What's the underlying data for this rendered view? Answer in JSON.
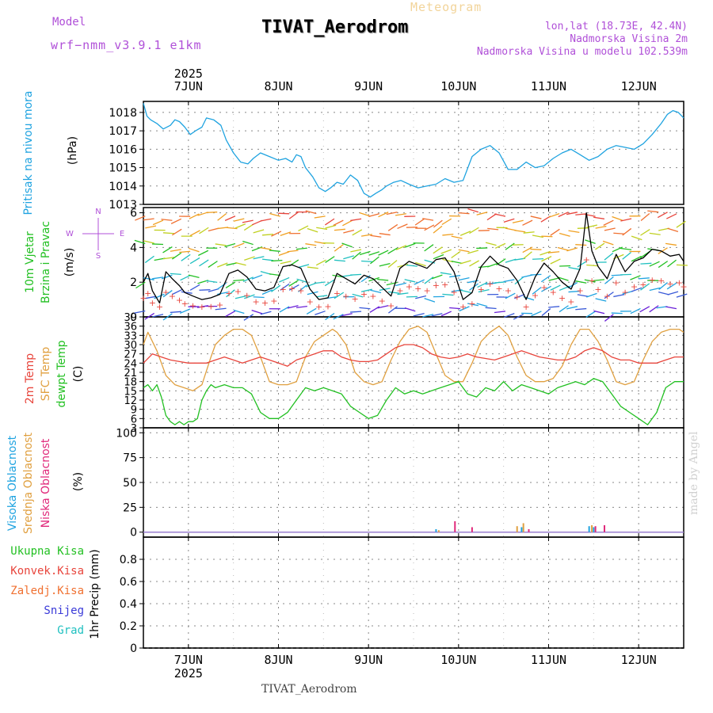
{
  "header": {
    "model_label": "Model",
    "model_name": "wrf−nmm_v3.9.1 e1km",
    "chart_title": "Meteogram",
    "station": "TIVAT_Aerodrom",
    "lonlat": "lon,lat (18.73E, 42.4N)",
    "elevation": "Nadmorska Visina 2m",
    "model_elevation": "Nadmorska Visina u modelu 102.539m"
  },
  "footer": {
    "station": "TIVAT_Aerodrom",
    "credit": "made by Angel"
  },
  "colors": {
    "pressure": "#1fa3e0",
    "temp2m": "#e8453c",
    "sfc_temp": "#e0a040",
    "dewpoint": "#22c022",
    "high_cloud": "#1fa3e0",
    "mid_cloud": "#e0a040",
    "low_cloud": "#e0287a",
    "wind_label": "#22c022",
    "total_precip": "#22c022",
    "conv_precip": "#e8453c",
    "frozen_precip": "#f07030",
    "snow": "#3a3ad8",
    "graupel": "#20c0c0",
    "purple_text": "#b050d8"
  },
  "chart_data": [
    {
      "type": "line",
      "panel": "pressure",
      "top_year": "2025",
      "top_ticks": [
        "7JUN",
        "8JUN",
        "9JUN",
        "10JUN",
        "11JUN",
        "12JUN"
      ],
      "bottom_ticks": [
        "7JUN",
        "8JUN",
        "9JUN",
        "10JUN",
        "11JUN",
        "12JUN"
      ],
      "bottom_year": "2025",
      "xlim_days": [
        6.5,
        12.5
      ],
      "ylabel": "(hPa)",
      "side_label": "Pritisak na nivou mora",
      "ylim": [
        1013,
        1018.6
      ],
      "yticks": [
        1013,
        1014,
        1015,
        1016,
        1017,
        1018
      ],
      "series": [
        {
          "x": [
            6.5,
            6.54,
            6.58,
            6.65,
            6.72,
            6.8,
            6.85,
            6.9,
            6.96,
            7.02,
            7.08,
            7.15,
            7.2,
            7.28,
            7.36,
            7.42,
            7.5,
            7.58,
            7.66,
            7.72,
            7.8,
            7.9,
            8.0,
            8.08,
            8.15,
            8.2,
            8.25,
            8.3,
            8.38,
            8.45,
            8.52,
            8.58,
            8.65,
            8.72,
            8.8,
            8.88,
            8.95,
            9.02,
            9.08,
            9.15,
            9.2,
            9.28,
            9.36,
            9.45,
            9.55,
            9.65,
            9.75,
            9.85,
            9.95,
            10.05,
            10.15,
            10.25,
            10.35,
            10.45,
            10.55,
            10.65,
            10.75,
            10.85,
            10.95,
            11.05,
            11.15,
            11.25,
            11.35,
            11.45,
            11.55,
            11.65,
            11.75,
            11.85,
            11.95,
            12.05,
            12.15,
            12.25,
            12.32,
            12.38,
            12.44,
            12.5
          ],
          "values": [
            1018.5,
            1017.8,
            1017.6,
            1017.4,
            1017.1,
            1017.3,
            1017.6,
            1017.5,
            1017.2,
            1016.8,
            1017.0,
            1017.2,
            1017.7,
            1017.6,
            1017.3,
            1016.5,
            1015.8,
            1015.3,
            1015.2,
            1015.5,
            1015.8,
            1015.6,
            1015.4,
            1015.5,
            1015.3,
            1015.7,
            1015.6,
            1015.0,
            1014.5,
            1013.9,
            1013.7,
            1013.9,
            1014.2,
            1014.1,
            1014.6,
            1014.3,
            1013.6,
            1013.4,
            1013.6,
            1013.8,
            1014.0,
            1014.2,
            1014.3,
            1014.1,
            1013.9,
            1014.0,
            1014.1,
            1014.4,
            1014.2,
            1014.3,
            1015.6,
            1016.0,
            1016.2,
            1015.8,
            1014.9,
            1014.9,
            1015.3,
            1015.0,
            1015.1,
            1015.5,
            1015.8,
            1016.0,
            1015.7,
            1015.4,
            1015.6,
            1016.0,
            1016.2,
            1016.1,
            1016.0,
            1016.3,
            1016.8,
            1017.4,
            1017.9,
            1018.1,
            1018.0,
            1017.7
          ],
          "color": "#1fa3e0"
        }
      ]
    },
    {
      "type": "line",
      "panel": "wind",
      "ylabel": "(m/s)",
      "side_labels": [
        "10m Vjetar",
        "Brzina i Pravac"
      ],
      "compass": {
        "n": "N",
        "s": "S",
        "w": "W",
        "e": "E"
      },
      "ylim": [
        0,
        6.3
      ],
      "yticks": [
        0,
        2,
        4,
        6
      ],
      "note": "speed line (black) with scattered wind-direction arrows colored by speed",
      "series": [
        {
          "name": "speed",
          "x": [
            6.5,
            6.55,
            6.6,
            6.68,
            6.75,
            6.82,
            6.9,
            6.96,
            7.05,
            7.15,
            7.25,
            7.35,
            7.45,
            7.55,
            7.65,
            7.75,
            7.85,
            7.95,
            8.05,
            8.15,
            8.25,
            8.35,
            8.45,
            8.55,
            8.65,
            8.75,
            8.85,
            8.95,
            9.05,
            9.15,
            9.25,
            9.35,
            9.45,
            9.55,
            9.65,
            9.75,
            9.85,
            9.95,
            10.05,
            10.15,
            10.25,
            10.35,
            10.45,
            10.55,
            10.65,
            10.75,
            10.85,
            10.95,
            11.05,
            11.15,
            11.25,
            11.35,
            11.42,
            11.48,
            11.55,
            11.65,
            11.75,
            11.85,
            11.95,
            12.05,
            12.15,
            12.25,
            12.35,
            12.45,
            12.5
          ],
          "values": [
            2.0,
            2.5,
            1.5,
            0.8,
            2.6,
            2.2,
            1.8,
            1.4,
            1.2,
            1.0,
            1.1,
            1.3,
            2.5,
            2.7,
            2.3,
            1.6,
            1.5,
            1.7,
            2.9,
            3.0,
            2.8,
            1.6,
            1.0,
            1.1,
            2.5,
            2.2,
            1.9,
            2.4,
            2.2,
            1.7,
            1.2,
            2.8,
            3.2,
            3.0,
            2.8,
            3.3,
            3.4,
            2.6,
            1.0,
            1.4,
            2.9,
            3.5,
            3.0,
            2.8,
            2.1,
            1.0,
            2.3,
            3.1,
            2.6,
            2.0,
            1.6,
            2.8,
            6.0,
            3.8,
            2.9,
            2.2,
            3.6,
            2.6,
            3.2,
            3.4,
            3.9,
            3.8,
            3.5,
            3.6,
            3.2
          ],
          "color": "#000000"
        }
      ]
    },
    {
      "type": "line",
      "panel": "temperature",
      "ylabel": "(C)",
      "side_labels": [
        "2m Temp",
        "SFC Temp",
        "dewpt Temp"
      ],
      "ylim": [
        3,
        39
      ],
      "yticks": [
        3,
        6,
        9,
        12,
        15,
        18,
        21,
        24,
        27,
        30,
        33,
        36,
        39
      ],
      "series": [
        {
          "name": "2m Temp",
          "color": "#e8453c",
          "x": [
            6.5,
            6.6,
            6.7,
            6.8,
            6.9,
            7.0,
            7.1,
            7.2,
            7.3,
            7.4,
            7.5,
            7.6,
            7.7,
            7.8,
            7.9,
            8.0,
            8.1,
            8.2,
            8.3,
            8.4,
            8.5,
            8.6,
            8.7,
            8.8,
            8.9,
            9.0,
            9.1,
            9.2,
            9.3,
            9.4,
            9.5,
            9.6,
            9.7,
            9.8,
            9.9,
            10.0,
            10.1,
            10.2,
            10.3,
            10.4,
            10.5,
            10.6,
            10.7,
            10.8,
            10.9,
            11.0,
            11.1,
            11.2,
            11.3,
            11.4,
            11.5,
            11.6,
            11.7,
            11.8,
            11.9,
            12.0,
            12.1,
            12.2,
            12.3,
            12.4,
            12.5
          ],
          "values": [
            24,
            27,
            26,
            25,
            24.5,
            24,
            24,
            24,
            25,
            26,
            25,
            24,
            25,
            26,
            25,
            24,
            23,
            25,
            26,
            27,
            28,
            28,
            26,
            25,
            24.5,
            24.5,
            25,
            27,
            29,
            30,
            30,
            29,
            27,
            26,
            25.5,
            26,
            27,
            26,
            25.5,
            25,
            26,
            27,
            28,
            27,
            26,
            25.5,
            25,
            25,
            26,
            28,
            29,
            28,
            26,
            25,
            25,
            24,
            24,
            24,
            25,
            26,
            26
          ]
        },
        {
          "name": "SFC Temp",
          "color": "#e0a040",
          "x": [
            6.5,
            6.55,
            6.65,
            6.75,
            6.85,
            6.95,
            7.05,
            7.15,
            7.25,
            7.3,
            7.4,
            7.5,
            7.6,
            7.7,
            7.8,
            7.9,
            8.0,
            8.1,
            8.2,
            8.3,
            8.4,
            8.5,
            8.6,
            8.65,
            8.75,
            8.85,
            8.95,
            9.05,
            9.15,
            9.25,
            9.35,
            9.45,
            9.55,
            9.65,
            9.75,
            9.85,
            9.95,
            10.05,
            10.15,
            10.25,
            10.35,
            10.45,
            10.55,
            10.65,
            10.75,
            10.85,
            10.95,
            11.05,
            11.15,
            11.25,
            11.35,
            11.45,
            11.55,
            11.65,
            11.75,
            11.85,
            11.95,
            12.05,
            12.15,
            12.25,
            12.35,
            12.45,
            12.5
          ],
          "values": [
            30,
            34,
            28,
            20,
            17,
            16,
            15,
            17,
            26,
            30,
            33,
            35,
            35,
            33,
            26,
            18,
            17,
            17,
            18,
            26,
            31,
            33,
            35,
            34,
            30,
            21,
            18,
            17,
            18,
            25,
            31,
            35,
            36,
            34,
            27,
            20,
            18,
            18,
            24,
            31,
            34,
            36,
            33,
            26,
            20,
            18,
            18,
            19,
            23,
            30,
            35,
            35,
            31,
            25,
            18,
            17,
            18,
            25,
            31,
            34,
            35,
            35,
            34
          ]
        },
        {
          "name": "dewpt Temp",
          "color": "#22c022",
          "x": [
            6.5,
            6.55,
            6.6,
            6.65,
            6.7,
            6.75,
            6.8,
            6.85,
            6.9,
            6.95,
            7.0,
            7.05,
            7.1,
            7.15,
            7.2,
            7.25,
            7.3,
            7.4,
            7.5,
            7.6,
            7.7,
            7.8,
            7.9,
            8.0,
            8.1,
            8.2,
            8.3,
            8.4,
            8.5,
            8.6,
            8.7,
            8.8,
            8.9,
            9.0,
            9.1,
            9.2,
            9.3,
            9.4,
            9.5,
            9.6,
            9.7,
            9.8,
            9.9,
            10.0,
            10.1,
            10.2,
            10.3,
            10.4,
            10.5,
            10.6,
            10.7,
            10.8,
            10.9,
            11.0,
            11.1,
            11.2,
            11.3,
            11.4,
            11.5,
            11.6,
            11.7,
            11.8,
            11.9,
            12.0,
            12.1,
            12.2,
            12.3,
            12.4,
            12.5
          ],
          "values": [
            16,
            17,
            15,
            17,
            13,
            7,
            5,
            4,
            5,
            4,
            5,
            5,
            6,
            12,
            15,
            17,
            16,
            17,
            16,
            16,
            14,
            8,
            6,
            6,
            8,
            12,
            16,
            15,
            16,
            15,
            14,
            10,
            8,
            6,
            7,
            12,
            16,
            14,
            15,
            14,
            15,
            16,
            17,
            18,
            14,
            13,
            16,
            15,
            18,
            15,
            17,
            16,
            15,
            14,
            16,
            17,
            18,
            17,
            19,
            18,
            14,
            10,
            8,
            6,
            4,
            8,
            16,
            18,
            18
          ]
        }
      ]
    },
    {
      "type": "bar",
      "panel": "clouds",
      "ylabel": "(%)",
      "side_labels": [
        "Visoka Oblacnost",
        "Srednja Oblacnost",
        "Niska Oblacnost"
      ],
      "ylim": [
        -5,
        105
      ],
      "yticks": [
        0,
        25,
        50,
        75,
        100
      ],
      "series": [
        {
          "name": "Visoka Oblacnost",
          "color": "#1fa3e0",
          "x": [
            9.75,
            10.7,
            11.45,
            11.5
          ],
          "values": [
            3,
            5,
            6,
            5
          ]
        },
        {
          "name": "Srednja Oblacnost",
          "color": "#e0a040",
          "x": [
            9.78,
            10.65,
            10.72,
            11.48
          ],
          "values": [
            2,
            6,
            9,
            7
          ]
        },
        {
          "name": "Niska Oblacnost",
          "color": "#e0287a",
          "x": [
            9.96,
            10.15,
            10.78,
            11.52,
            11.62
          ],
          "values": [
            11,
            5,
            3,
            6,
            7
          ]
        }
      ]
    },
    {
      "type": "bar",
      "panel": "precip",
      "ylabel": "1hr Precip (mm)",
      "side_labels": [
        "Ukupna Kisa",
        "Konvek.Kisa",
        "Zaledj.Kisa",
        "Snijeg",
        "Grad"
      ],
      "ylim": [
        0,
        1.0
      ],
      "yticks": [
        0,
        0.2,
        0.4,
        0.6,
        0.8
      ],
      "series": [
        {
          "name": "Ukupna Kisa",
          "color": "#22c022",
          "x": [],
          "values": []
        },
        {
          "name": "Konvek.Kisa",
          "color": "#e8453c",
          "x": [],
          "values": []
        },
        {
          "name": "Zaledj.Kisa",
          "color": "#f07030",
          "x": [],
          "values": []
        },
        {
          "name": "Snijeg",
          "color": "#3a3ad8",
          "x": [],
          "values": []
        },
        {
          "name": "Grad",
          "color": "#20c0c0",
          "x": [],
          "values": []
        }
      ]
    }
  ]
}
